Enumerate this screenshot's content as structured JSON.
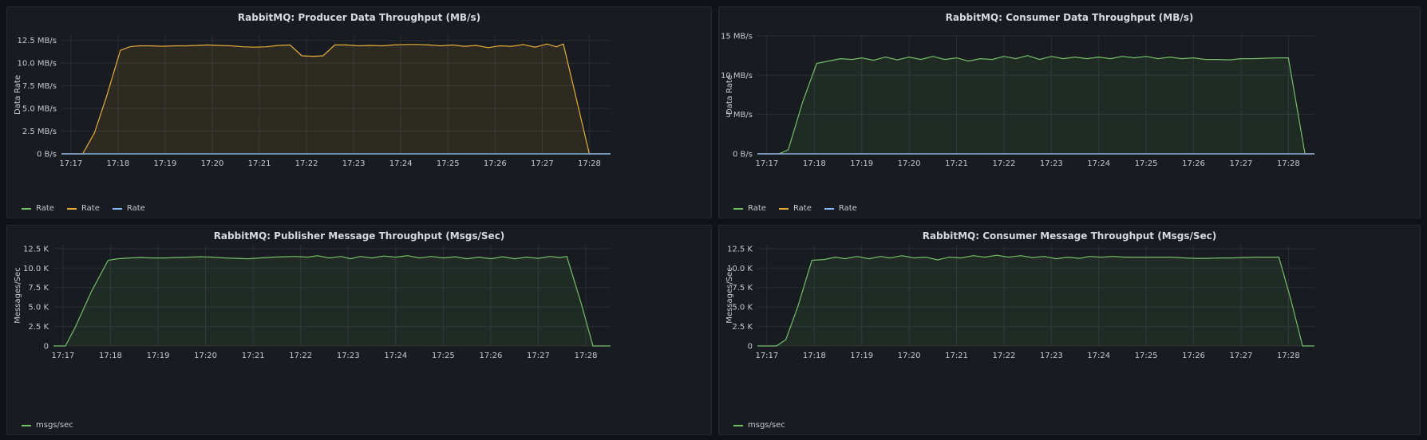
{
  "chart_data": [
    {
      "type": "area",
      "title": "RabbitMQ: Producer Data Throughput (MB/s)",
      "ylabel": "Data Rate",
      "xlabel": "",
      "ylim": [
        0,
        13
      ],
      "yticks": [
        0,
        2.5,
        5,
        7.5,
        10,
        12.5
      ],
      "ytick_labels": [
        "0 B/s",
        "2.5 MB/s",
        "5.0 MB/s",
        "7.5 MB/s",
        "10.0 MB/s",
        "12.5 MB/s"
      ],
      "xlim": [
        17.2,
        28.85
      ],
      "xticks": [
        17.4,
        18.4,
        19.4,
        20.4,
        21.4,
        22.4,
        23.4,
        24.4,
        25.4,
        26.4,
        27.4,
        28.4
      ],
      "xtick_labels": [
        "17:17",
        "17:18",
        "17:19",
        "17:20",
        "17:21",
        "17:22",
        "17:23",
        "17:24",
        "17:25",
        "17:26",
        "17:27",
        "17:28"
      ],
      "grid": true,
      "legend_position": "bottom-left",
      "series": [
        {
          "name": "Rate",
          "color": "#73bf69",
          "values": [
            [
              17.2,
              0
            ],
            [
              28.85,
              0
            ]
          ]
        },
        {
          "name": "Rate",
          "color": "#e5ac3c",
          "values": [
            [
              17.2,
              0
            ],
            [
              17.65,
              0
            ],
            [
              17.9,
              2.3
            ],
            [
              18.15,
              6.2
            ],
            [
              18.45,
              11.4
            ],
            [
              18.65,
              11.8
            ],
            [
              18.85,
              11.9
            ],
            [
              19.1,
              11.9
            ],
            [
              19.35,
              11.85
            ],
            [
              19.6,
              11.9
            ],
            [
              19.85,
              11.9
            ],
            [
              20.05,
              11.95
            ],
            [
              20.3,
              12.0
            ],
            [
              20.55,
              11.95
            ],
            [
              20.8,
              11.9
            ],
            [
              21.05,
              11.8
            ],
            [
              21.3,
              11.75
            ],
            [
              21.55,
              11.8
            ],
            [
              21.8,
              11.95
            ],
            [
              22.05,
              12.0
            ],
            [
              22.3,
              10.8
            ],
            [
              22.55,
              10.75
            ],
            [
              22.75,
              10.8
            ],
            [
              23.0,
              12.0
            ],
            [
              23.25,
              12.0
            ],
            [
              23.5,
              11.9
            ],
            [
              23.75,
              11.95
            ],
            [
              24.0,
              11.9
            ],
            [
              24.25,
              12.0
            ],
            [
              24.5,
              12.05
            ],
            [
              24.75,
              12.05
            ],
            [
              25.0,
              12.0
            ],
            [
              25.25,
              11.9
            ],
            [
              25.5,
              12.0
            ],
            [
              25.75,
              11.85
            ],
            [
              26.0,
              11.95
            ],
            [
              26.25,
              11.7
            ],
            [
              26.5,
              11.9
            ],
            [
              26.75,
              11.85
            ],
            [
              27.0,
              12.05
            ],
            [
              27.25,
              11.75
            ],
            [
              27.5,
              12.1
            ],
            [
              27.7,
              11.8
            ],
            [
              27.85,
              12.1
            ],
            [
              28.15,
              5.5
            ],
            [
              28.4,
              0
            ],
            [
              28.85,
              0
            ]
          ]
        },
        {
          "name": "Rate",
          "color": "#8ab8ff",
          "values": [
            [
              17.2,
              0
            ],
            [
              28.85,
              0
            ]
          ]
        }
      ]
    },
    {
      "type": "area",
      "title": "RabbitMQ: Consumer Data Throughput (MB/s)",
      "ylabel": "Data Rate",
      "xlabel": "",
      "ylim": [
        0,
        15
      ],
      "yticks": [
        0,
        5,
        10,
        15
      ],
      "ytick_labels": [
        "0 B/s",
        "5 MB/s",
        "10 MB/s",
        "15 MB/s"
      ],
      "xlim": [
        17.0,
        28.75
      ],
      "xticks": [
        17.2,
        18.2,
        19.2,
        20.2,
        21.2,
        22.2,
        23.2,
        24.2,
        25.2,
        26.2,
        27.2,
        28.2
      ],
      "xtick_labels": [
        "17:17",
        "17:18",
        "17:19",
        "17:20",
        "17:21",
        "17:22",
        "17:23",
        "17:24",
        "17:25",
        "17:26",
        "17:27",
        "17:28"
      ],
      "grid": true,
      "legend_position": "bottom-left",
      "series": [
        {
          "name": "Rate",
          "color": "#73bf69",
          "values": [
            [
              17.0,
              0
            ],
            [
              17.45,
              0
            ],
            [
              17.65,
              0.5
            ],
            [
              17.95,
              6.5
            ],
            [
              18.25,
              11.5
            ],
            [
              18.5,
              11.8
            ],
            [
              18.75,
              12.1
            ],
            [
              19.0,
              12.0
            ],
            [
              19.2,
              12.2
            ],
            [
              19.45,
              11.9
            ],
            [
              19.7,
              12.3
            ],
            [
              19.95,
              11.95
            ],
            [
              20.2,
              12.3
            ],
            [
              20.45,
              12.0
            ],
            [
              20.7,
              12.4
            ],
            [
              20.95,
              12.0
            ],
            [
              21.2,
              12.2
            ],
            [
              21.45,
              11.8
            ],
            [
              21.7,
              12.1
            ],
            [
              21.95,
              12.0
            ],
            [
              22.2,
              12.4
            ],
            [
              22.45,
              12.1
            ],
            [
              22.7,
              12.5
            ],
            [
              22.95,
              12.0
            ],
            [
              23.2,
              12.4
            ],
            [
              23.45,
              12.1
            ],
            [
              23.7,
              12.3
            ],
            [
              23.95,
              12.1
            ],
            [
              24.2,
              12.3
            ],
            [
              24.45,
              12.1
            ],
            [
              24.7,
              12.4
            ],
            [
              24.95,
              12.2
            ],
            [
              25.2,
              12.4
            ],
            [
              25.45,
              12.1
            ],
            [
              25.7,
              12.3
            ],
            [
              25.95,
              12.1
            ],
            [
              26.2,
              12.2
            ],
            [
              26.45,
              12.0
            ],
            [
              26.7,
              12.0
            ],
            [
              26.95,
              11.95
            ],
            [
              27.2,
              12.1
            ],
            [
              27.45,
              12.1
            ],
            [
              27.7,
              12.15
            ],
            [
              27.95,
              12.2
            ],
            [
              28.2,
              12.2
            ],
            [
              28.55,
              0
            ],
            [
              28.75,
              0
            ]
          ]
        },
        {
          "name": "Rate",
          "color": "#e5ac3c",
          "values": [
            [
              17.0,
              0
            ],
            [
              28.75,
              0
            ]
          ]
        },
        {
          "name": "Rate",
          "color": "#8ab8ff",
          "values": [
            [
              17.0,
              0
            ],
            [
              28.75,
              0
            ]
          ]
        }
      ]
    },
    {
      "type": "area",
      "title": "RabbitMQ: Publisher Message Throughput (Msgs/Sec)",
      "ylabel": "Messages/Sec",
      "xlabel": "",
      "ylim": [
        0,
        13000
      ],
      "yticks": [
        0,
        2500,
        5000,
        7500,
        10000,
        12500
      ],
      "ytick_labels": [
        "0",
        "2.5 K",
        "5.0 K",
        "7.5 K",
        "10.0 K",
        "12.5 K"
      ],
      "xlim": [
        17.0,
        28.72
      ],
      "xticks": [
        17.2,
        18.2,
        19.2,
        20.2,
        21.2,
        22.2,
        23.2,
        24.2,
        25.2,
        26.2,
        27.2,
        28.2
      ],
      "xtick_labels": [
        "17:17",
        "17:18",
        "17:19",
        "17:20",
        "17:21",
        "17:22",
        "17:23",
        "17:24",
        "17:25",
        "17:26",
        "17:27",
        "17:28"
      ],
      "grid": true,
      "legend_position": "bottom-left",
      "series": [
        {
          "name": "msgs/sec",
          "color": "#73bf69",
          "values": [
            [
              17.0,
              0
            ],
            [
              17.25,
              0
            ],
            [
              17.45,
              2300
            ],
            [
              17.8,
              7000
            ],
            [
              18.15,
              11000
            ],
            [
              18.35,
              11200
            ],
            [
              18.6,
              11300
            ],
            [
              18.85,
              11350
            ],
            [
              19.1,
              11300
            ],
            [
              19.35,
              11300
            ],
            [
              19.6,
              11350
            ],
            [
              19.85,
              11400
            ],
            [
              20.1,
              11450
            ],
            [
              20.35,
              11400
            ],
            [
              20.6,
              11300
            ],
            [
              20.85,
              11250
            ],
            [
              21.1,
              11200
            ],
            [
              21.35,
              11300
            ],
            [
              21.6,
              11400
            ],
            [
              21.85,
              11450
            ],
            [
              22.1,
              11500
            ],
            [
              22.35,
              11400
            ],
            [
              22.55,
              11600
            ],
            [
              22.8,
              11300
            ],
            [
              23.05,
              11500
            ],
            [
              23.25,
              11200
            ],
            [
              23.45,
              11500
            ],
            [
              23.7,
              11300
            ],
            [
              23.95,
              11550
            ],
            [
              24.2,
              11400
            ],
            [
              24.45,
              11600
            ],
            [
              24.7,
              11300
            ],
            [
              24.95,
              11500
            ],
            [
              25.2,
              11300
            ],
            [
              25.45,
              11450
            ],
            [
              25.7,
              11200
            ],
            [
              25.95,
              11400
            ],
            [
              26.2,
              11200
            ],
            [
              26.45,
              11450
            ],
            [
              26.7,
              11200
            ],
            [
              26.95,
              11400
            ],
            [
              27.2,
              11250
            ],
            [
              27.45,
              11500
            ],
            [
              27.65,
              11350
            ],
            [
              27.8,
              11500
            ],
            [
              28.1,
              5500
            ],
            [
              28.35,
              0
            ],
            [
              28.72,
              0
            ]
          ]
        }
      ]
    },
    {
      "type": "area",
      "title": "RabbitMQ: Consumer Message Throughput (Msgs/Sec)",
      "ylabel": "Messages/Sec",
      "xlabel": "",
      "ylim": [
        0,
        13000
      ],
      "yticks": [
        0,
        2500,
        5000,
        7500,
        10000,
        12500
      ],
      "ytick_labels": [
        "0",
        "2.5 K",
        "5.0 K",
        "7.5 K",
        "10.0 K",
        "12.5 K"
      ],
      "xlim": [
        17.0,
        28.75
      ],
      "xticks": [
        17.2,
        18.2,
        19.2,
        20.2,
        21.2,
        22.2,
        23.2,
        24.2,
        25.2,
        26.2,
        27.2,
        28.2
      ],
      "xtick_labels": [
        "17:17",
        "17:18",
        "17:19",
        "17:20",
        "17:21",
        "17:22",
        "17:23",
        "17:24",
        "17:25",
        "17:26",
        "17:27",
        "17:28"
      ],
      "grid": true,
      "legend_position": "bottom-left",
      "series": [
        {
          "name": "msgs/sec",
          "color": "#73bf69",
          "values": [
            [
              17.0,
              0
            ],
            [
              17.4,
              0
            ],
            [
              17.6,
              800
            ],
            [
              17.85,
              5000
            ],
            [
              18.15,
              11000
            ],
            [
              18.4,
              11100
            ],
            [
              18.65,
              11400
            ],
            [
              18.85,
              11200
            ],
            [
              19.1,
              11500
            ],
            [
              19.35,
              11200
            ],
            [
              19.6,
              11500
            ],
            [
              19.8,
              11300
            ],
            [
              20.05,
              11600
            ],
            [
              20.3,
              11300
            ],
            [
              20.55,
              11400
            ],
            [
              20.8,
              11050
            ],
            [
              21.05,
              11400
            ],
            [
              21.3,
              11300
            ],
            [
              21.55,
              11600
            ],
            [
              21.8,
              11400
            ],
            [
              22.05,
              11650
            ],
            [
              22.3,
              11400
            ],
            [
              22.55,
              11600
            ],
            [
              22.8,
              11350
            ],
            [
              23.05,
              11500
            ],
            [
              23.3,
              11200
            ],
            [
              23.55,
              11400
            ],
            [
              23.8,
              11250
            ],
            [
              24.0,
              11500
            ],
            [
              24.25,
              11400
            ],
            [
              24.5,
              11500
            ],
            [
              24.75,
              11400
            ],
            [
              25.0,
              11400
            ],
            [
              25.25,
              11400
            ],
            [
              25.5,
              11400
            ],
            [
              25.75,
              11400
            ],
            [
              26.0,
              11300
            ],
            [
              26.25,
              11250
            ],
            [
              26.5,
              11250
            ],
            [
              26.75,
              11300
            ],
            [
              27.0,
              11300
            ],
            [
              27.25,
              11350
            ],
            [
              27.5,
              11400
            ],
            [
              27.75,
              11400
            ],
            [
              28.0,
              11400
            ],
            [
              28.25,
              6000
            ],
            [
              28.5,
              0
            ],
            [
              28.75,
              0
            ]
          ]
        }
      ]
    }
  ]
}
